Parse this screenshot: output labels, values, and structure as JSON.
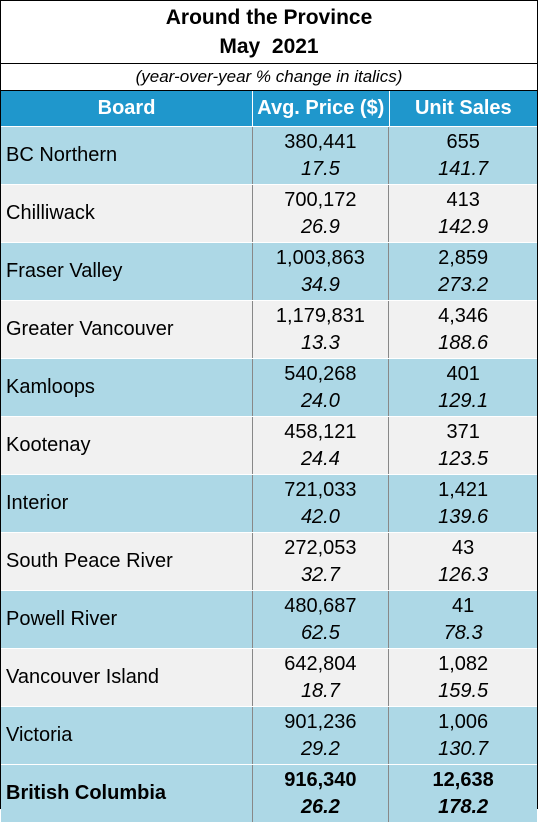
{
  "title_line1": "Around the Province",
  "title_line2": "May  2021",
  "subtitle": "(year-over-year % change in italics)",
  "headers": {
    "board": "Board",
    "price": "Avg. Price ($)",
    "sales": "Unit Sales"
  },
  "rows": [
    {
      "board": "BC Northern",
      "price": "380,441",
      "price_pct": "17.5",
      "sales": "655",
      "sales_pct": "141.7"
    },
    {
      "board": "Chilliwack",
      "price": "700,172",
      "price_pct": "26.9",
      "sales": "413",
      "sales_pct": "142.9"
    },
    {
      "board": "Fraser Valley",
      "price": "1,003,863",
      "price_pct": "34.9",
      "sales": "2,859",
      "sales_pct": "273.2"
    },
    {
      "board": "Greater Vancouver",
      "price": "1,179,831",
      "price_pct": "13.3",
      "sales": "4,346",
      "sales_pct": "188.6"
    },
    {
      "board": "Kamloops",
      "price": "540,268",
      "price_pct": "24.0",
      "sales": "401",
      "sales_pct": "129.1"
    },
    {
      "board": "Kootenay",
      "price": "458,121",
      "price_pct": "24.4",
      "sales": "371",
      "sales_pct": "123.5"
    },
    {
      "board": "Interior",
      "price": "721,033",
      "price_pct": "42.0",
      "sales": "1,421",
      "sales_pct": "139.6"
    },
    {
      "board": "South Peace River",
      "price": "272,053",
      "price_pct": "32.7",
      "sales": "43",
      "sales_pct": "126.3"
    },
    {
      "board": "Powell River",
      "price": "480,687",
      "price_pct": "62.5",
      "sales": "41",
      "sales_pct": "78.3"
    },
    {
      "board": "Vancouver Island",
      "price": "642,804",
      "price_pct": "18.7",
      "sales": "1,082",
      "sales_pct": "159.5"
    },
    {
      "board": "Victoria",
      "price": "901,236",
      "price_pct": "29.2",
      "sales": "1,006",
      "sales_pct": "130.7"
    }
  ],
  "total": {
    "board": "British Columbia",
    "price": "916,340",
    "price_pct": "26.2",
    "sales": "12,638",
    "sales_pct": "178.2"
  },
  "colors": {
    "header_bg": "#1f97cc",
    "row_blue": "#add8e6",
    "row_gray": "#f1f1f1"
  }
}
